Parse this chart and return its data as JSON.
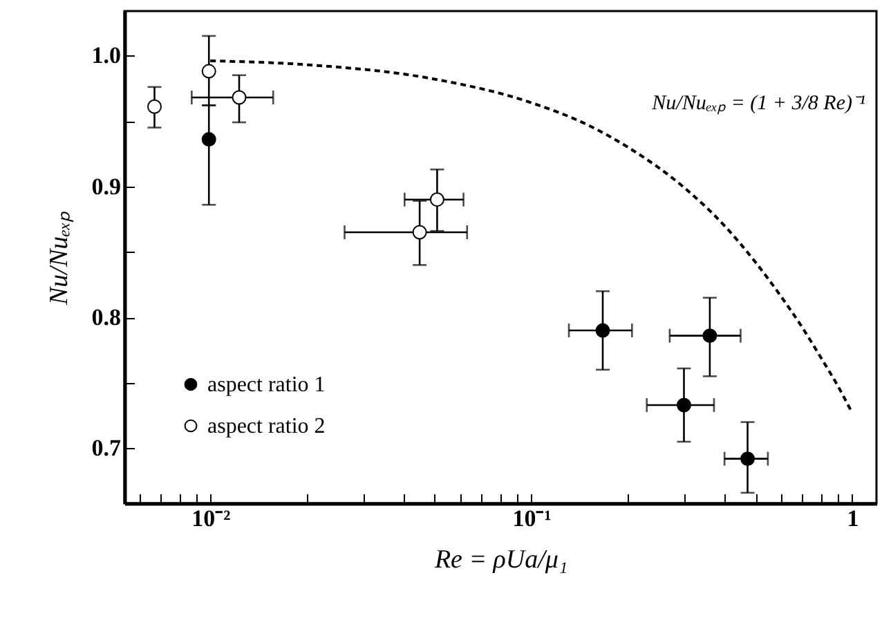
{
  "chart_data": {
    "type": "scatter",
    "xlabel": "Re = ρUa/μ₁",
    "ylabel": "Nu/Nuₑₓₚ",
    "log": "x",
    "grid": false,
    "legend": "bottom left",
    "marker": "circle",
    "xlim": [
      0.0054,
      1.19
    ],
    "ylim": [
      0.658,
      1.034
    ],
    "xticks": [
      {
        "value": 0.006,
        "label": null
      },
      {
        "value": 0.007,
        "label": null
      },
      {
        "value": 0.008,
        "label": null
      },
      {
        "value": 0.009,
        "label": null
      },
      {
        "value": 0.01,
        "label": "10⁻²"
      },
      {
        "value": 0.02,
        "label": null
      },
      {
        "value": 0.03,
        "label": null
      },
      {
        "value": 0.04,
        "label": null
      },
      {
        "value": 0.05,
        "label": null
      },
      {
        "value": 0.06,
        "label": null
      },
      {
        "value": 0.07,
        "label": null
      },
      {
        "value": 0.08,
        "label": null
      },
      {
        "value": 0.09,
        "label": null
      },
      {
        "value": 0.1,
        "label": "10⁻¹"
      },
      {
        "value": 0.2,
        "label": null
      },
      {
        "value": 0.3,
        "label": null
      },
      {
        "value": 0.4,
        "label": null
      },
      {
        "value": 0.5,
        "label": null
      },
      {
        "value": 0.6,
        "label": null
      },
      {
        "value": 0.7,
        "label": null
      },
      {
        "value": 0.8,
        "label": null
      },
      {
        "value": 0.9,
        "label": null
      },
      1
    ],
    "yticks": [
      0.7,
      {
        "value": 0.75,
        "label": null
      },
      0.8,
      {
        "value": 0.85,
        "label": null
      },
      0.9,
      {
        "value": 0.95,
        "label": null
      },
      {
        "value": 1,
        "label": "1.0"
      }
    ],
    "annotations": [
      "Nu/Nuₑₓₚ = (1 + 3/8 Re)⁻¹"
    ],
    "series": [
      {
        "name": "aspect ratio 1",
        "color": "#000000",
        "type": "scatter",
        "x": [
          0.0099,
          0.167,
          0.36,
          0.299,
          0.472
        ],
        "values": [
          0.936,
          0.79,
          0.786,
          0.733,
          0.692
        ],
        "errors": [
          [
            0.886,
            0.962
          ],
          [
            0.76,
            0.82
          ],
          [
            0.755,
            0.815
          ],
          [
            0.705,
            0.761
          ],
          [
            0.666,
            0.72
          ]
        ],
        "xerrors": [
          null,
          [
            0.131,
            0.206
          ],
          [
            0.27,
            0.449
          ],
          [
            0.229,
            0.371
          ],
          [
            0.4,
            0.546
          ]
        ]
      },
      {
        "name": "aspect ratio 2",
        "color": "#ffffff",
        "type": "scatter",
        "x": [
          0.0067,
          0.0099,
          0.0123,
          0.0509,
          0.0449
        ],
        "values": [
          0.961,
          0.988,
          0.968,
          0.89,
          0.865
        ],
        "errors": [
          [
            0.945,
            0.976
          ],
          [
            0.962,
            1.015
          ],
          [
            0.949,
            0.985
          ],
          [
            0.866,
            0.913
          ],
          [
            0.84,
            0.889
          ]
        ],
        "xerrors": [
          null,
          null,
          [
            0.00875,
            0.0157
          ],
          [
            0.0403,
            0.0615
          ],
          [
            0.0262,
            0.0631
          ]
        ]
      },
      {
        "color": "#000000",
        "type": "line",
        "marker": "none",
        "line_style": "dashed",
        "x": [
          0.01,
          0.02,
          0.05,
          0.1,
          0.15,
          0.2,
          0.3,
          0.4,
          0.5,
          0.6,
          0.7,
          0.8,
          0.9,
          1.0
        ],
        "values": [
          0.996,
          0.993,
          0.982,
          0.964,
          0.947,
          0.93,
          0.899,
          0.87,
          0.842,
          0.816,
          0.792,
          0.769,
          0.748,
          0.727
        ]
      }
    ]
  }
}
